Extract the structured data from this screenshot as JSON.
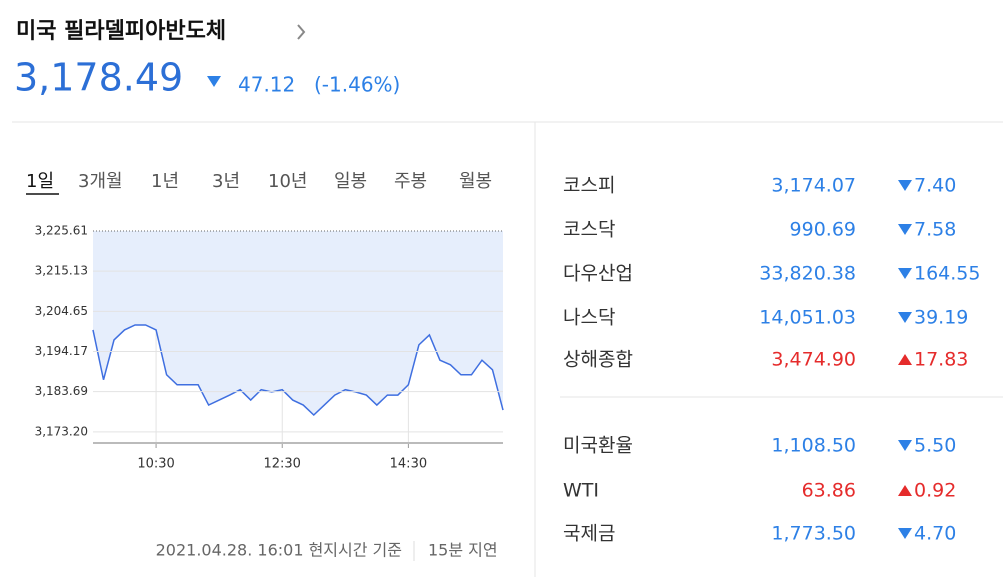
{
  "header": {
    "title": "미국 필라델피아반도체",
    "price": "3,178.49",
    "change": "47.12",
    "change_rate": "(-1.46%)",
    "direction": "down"
  },
  "tabs": [
    "1일",
    "3개월",
    "1년",
    "3년",
    "10년",
    "일봉",
    "주봉",
    "월봉"
  ],
  "chart_data": {
    "type": "line",
    "color": "#3f6fe0",
    "fill": "#e6eefc",
    "x": [
      "09:30",
      "09:40",
      "09:50",
      "10:00",
      "10:10",
      "10:20",
      "10:30",
      "10:40",
      "10:50",
      "11:00",
      "11:10",
      "11:20",
      "11:30",
      "11:40",
      "11:50",
      "12:00",
      "12:10",
      "12:20",
      "12:30",
      "12:40",
      "12:50",
      "13:00",
      "13:10",
      "13:20",
      "13:30",
      "13:40",
      "13:50",
      "14:00",
      "14:10",
      "14:20",
      "14:30",
      "14:40",
      "14:50",
      "15:00",
      "15:10",
      "15:20",
      "15:30",
      "15:40",
      "15:50",
      "16:00"
    ],
    "values": [
      3199.8,
      3186.8,
      3197.2,
      3199.8,
      3201.1,
      3201.1,
      3199.8,
      3188.1,
      3185.5,
      3185.5,
      3185.5,
      3180.2,
      3181.5,
      3182.8,
      3184.2,
      3181.5,
      3184.2,
      3183.6,
      3184.2,
      3181.5,
      3180.2,
      3177.6,
      3180.2,
      3182.8,
      3184.2,
      3183.6,
      3182.8,
      3180.2,
      3182.8,
      3182.8,
      3185.5,
      3195.9,
      3198.5,
      3191.9,
      3190.7,
      3188.1,
      3188.1,
      3191.9,
      3189.4,
      3178.9
    ],
    "xlim": [
      "09:30",
      "16:00"
    ],
    "xticks": [
      "10:30",
      "12:30",
      "14:30"
    ],
    "ylim": [
      3170.3,
      3225.61
    ],
    "yticks": [
      {
        "value": 3173.2,
        "label": "3,173.20"
      },
      {
        "value": 3183.69,
        "label": "3,183.69"
      },
      {
        "value": 3194.17,
        "label": "3,194.17"
      },
      {
        "value": 3204.65,
        "label": "3,204.65"
      },
      {
        "value": 3215.13,
        "label": "3,215.13"
      },
      {
        "value": 3225.61,
        "label": "3,225.61"
      }
    ],
    "grid": true
  },
  "footer": {
    "timestamp": "2021.04.28. 16:01 현지시간 기준",
    "delay": "15분 지연"
  },
  "indices": [
    [
      {
        "name": "코스피",
        "value": "3,174.07",
        "change": "7.40",
        "direction": "down"
      },
      {
        "name": "코스닥",
        "value": "990.69",
        "change": "7.58",
        "direction": "down"
      },
      {
        "name": "다우산업",
        "value": "33,820.38",
        "change": "164.55",
        "direction": "down"
      },
      {
        "name": "나스닥",
        "value": "14,051.03",
        "change": "39.19",
        "direction": "down"
      },
      {
        "name": "상해종합",
        "value": "3,474.90",
        "change": "17.83",
        "direction": "up"
      }
    ],
    [
      {
        "name": "미국환율",
        "value": "1,108.50",
        "change": "5.50",
        "direction": "down"
      },
      {
        "name": "WTI",
        "value": "63.86",
        "change": "0.92",
        "direction": "up"
      },
      {
        "name": "국제금",
        "value": "1,773.50",
        "change": "4.70",
        "direction": "down"
      }
    ]
  ]
}
